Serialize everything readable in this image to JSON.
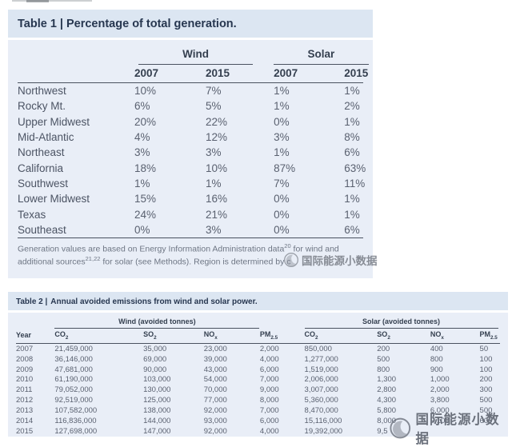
{
  "colors": {
    "title_bar_bg": "#dce6f2",
    "table_body_bg": "#e9eef7",
    "title_text": "#273750",
    "header_text": "#343f4f",
    "data_text": "#5a6170",
    "rule": "#4a5260",
    "footnote_text": "#6e7684",
    "watermark_text": "#6b717c",
    "page_bg": "#ffffff"
  },
  "watermark": {
    "text": "国际能源小数据",
    "logo": "crescent-moon-circle-logo"
  },
  "table1": {
    "title_label": "Table 1 |",
    "title_text": "Percentage of total generation.",
    "groups": [
      "Wind",
      "Solar"
    ],
    "year_headers": [
      "2007",
      "2015",
      "2007",
      "2015"
    ],
    "rows": [
      {
        "region": "Northwest",
        "values": [
          "10%",
          "7%",
          "1%",
          "1%"
        ]
      },
      {
        "region": "Rocky Mt.",
        "values": [
          "6%",
          "5%",
          "1%",
          "2%"
        ]
      },
      {
        "region": "Upper Midwest",
        "values": [
          "20%",
          "22%",
          "0%",
          "1%"
        ]
      },
      {
        "region": "Mid-Atlantic",
        "values": [
          "4%",
          "12%",
          "3%",
          "8%"
        ]
      },
      {
        "region": "Northeast",
        "values": [
          "3%",
          "3%",
          "1%",
          "6%"
        ]
      },
      {
        "region": "California",
        "values": [
          "18%",
          "10%",
          "87%",
          "63%"
        ]
      },
      {
        "region": "Southwest",
        "values": [
          "1%",
          "1%",
          "7%",
          "11%"
        ]
      },
      {
        "region": "Lower Midwest",
        "values": [
          "15%",
          "16%",
          "0%",
          "1%"
        ]
      },
      {
        "region": "Texas",
        "values": [
          "24%",
          "21%",
          "0%",
          "1%"
        ]
      },
      {
        "region": "Southeast",
        "values": [
          "0%",
          "3%",
          "0%",
          "6%"
        ]
      }
    ],
    "footnote": {
      "line1_pre": "Generation values are based on Energy Information Administration data",
      "sup1": "20",
      "line1_post": " for wind and",
      "line2_pre": "additional sources",
      "sup2": "21,22",
      "line2_post": " for solar (see Methods). Region is determined by c"
    }
  },
  "table2": {
    "title_label": "Table 2 |",
    "title_text": "Annual avoided emissions from wind and solar power.",
    "year_header": "Year",
    "groups": [
      "Wind (avoided tonnes)",
      "Solar (avoided tonnes)"
    ],
    "col_headers": [
      {
        "base": "CO",
        "sub": "2"
      },
      {
        "base": "SO",
        "sub": "2"
      },
      {
        "base": "NO",
        "sub": "x"
      },
      {
        "base": "PM",
        "sub": "2.5"
      }
    ],
    "rows": [
      {
        "year": "2007",
        "wind": [
          "21,459,000",
          "35,000",
          "23,000",
          "2,000"
        ],
        "solar": [
          "850,000",
          "200",
          "400",
          "50"
        ]
      },
      {
        "year": "2008",
        "wind": [
          "36,146,000",
          "69,000",
          "39,000",
          "4,000"
        ],
        "solar": [
          "1,277,000",
          "500",
          "800",
          "100"
        ]
      },
      {
        "year": "2009",
        "wind": [
          "47,681,000",
          "90,000",
          "43,000",
          "6,000"
        ],
        "solar": [
          "1,519,000",
          "800",
          "900",
          "100"
        ]
      },
      {
        "year": "2010",
        "wind": [
          "61,190,000",
          "103,000",
          "54,000",
          "7,000"
        ],
        "solar": [
          "2,006,000",
          "1,300",
          "1,000",
          "200"
        ]
      },
      {
        "year": "2011",
        "wind": [
          "79,052,000",
          "130,000",
          "70,000",
          "9,000"
        ],
        "solar": [
          "3,007,000",
          "2,800",
          "2,000",
          "300"
        ]
      },
      {
        "year": "2012",
        "wind": [
          "92,519,000",
          "125,000",
          "77,000",
          "8,000"
        ],
        "solar": [
          "5,360,000",
          "4,300",
          "3,800",
          "500"
        ]
      },
      {
        "year": "2013",
        "wind": [
          "107,582,000",
          "138,000",
          "92,000",
          "7,000"
        ],
        "solar": [
          "8,470,000",
          "5,800",
          "6,000",
          "500"
        ]
      },
      {
        "year": "2014",
        "wind": [
          "116,836,000",
          "144,000",
          "93,000",
          "6,000"
        ],
        "solar": [
          "15,116,000",
          "8,000",
          "9,100",
          "600"
        ]
      },
      {
        "year": "2015",
        "wind": [
          "127,698,000",
          "147,000",
          "92,000",
          "4,000"
        ],
        "solar": [
          "19,392,000",
          "9,5",
          "",
          ""
        ]
      }
    ]
  }
}
